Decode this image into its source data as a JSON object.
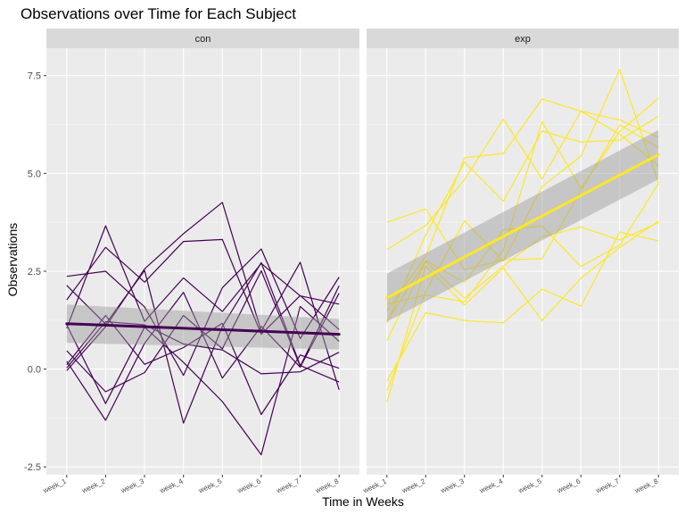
{
  "chart_data": {
    "type": "line",
    "title": "Observations over Time for Each Subject",
    "xlabel": "Time in Weeks",
    "ylabel": "Observations",
    "categories": [
      "week_1",
      "week_2",
      "week_3",
      "week_4",
      "week_5",
      "week_6",
      "week_7",
      "week_8"
    ],
    "yticks": [
      -2.5,
      0.0,
      2.5,
      5.0,
      7.5
    ],
    "ytick_labels": [
      "-2.5",
      "0.0",
      "2.5",
      "5.0",
      "7.5"
    ],
    "ylim": [
      -2.7,
      8.2
    ],
    "grid": true,
    "legend": "none",
    "panels": [
      {
        "name": "con",
        "color": "#440154",
        "smooth": {
          "y": [
            1.16,
            0.89
          ],
          "band": [
            [
              1.65,
              0.67
            ],
            [
              1.28,
              0.5
            ]
          ]
        },
        "series": [
          {
            "values": [
              0.2,
              -1.31,
              0.66,
              1.96,
              -0.23,
              1.09,
              0.05,
              1.94
            ]
          },
          {
            "values": [
              1.13,
              -0.88,
              1.07,
              0.17,
              -0.83,
              -2.19,
              1.6,
              0.71
            ]
          },
          {
            "values": [
              1.77,
              3.11,
              2.22,
              3.26,
              3.31,
              0.89,
              1.88,
              1.01
            ]
          },
          {
            "values": [
              1.04,
              3.66,
              1.22,
              2.33,
              1.47,
              2.7,
              1.87,
              1.66
            ]
          },
          {
            "values": [
              0.47,
              -0.58,
              -0.09,
              1.37,
              0.52,
              2.51,
              0.07,
              2.13
            ]
          },
          {
            "values": [
              2.37,
              2.5,
              1.59,
              -0.16,
              2.08,
              3.07,
              0.78,
              2.35
            ]
          },
          {
            "values": [
              0.03,
              1.21,
              1.13,
              0.64,
              0.49,
              -0.12,
              -0.07,
              0.43
            ]
          },
          {
            "values": [
              -0.04,
              1.08,
              2.56,
              3.46,
              4.26,
              0.97,
              2.73,
              -0.53
            ]
          },
          {
            "values": [
              2.14,
              1.15,
              2.52,
              -1.38,
              1.09,
              2.72,
              0.09,
              -0.33
            ]
          },
          {
            "values": [
              0.11,
              1.37,
              0.12,
              0.55,
              1.17,
              -1.16,
              0.36,
              0.02
            ]
          }
        ]
      },
      {
        "name": "exp",
        "color": "#fde725",
        "smooth": {
          "y": [
            1.82,
            5.48
          ],
          "band": [
            [
              2.44,
              1.21
            ],
            [
              6.11,
              4.85
            ]
          ]
        },
        "series": [
          {
            "values": [
              -0.84,
              2.63,
              1.64,
              2.58,
              1.24,
              2.32,
              3.11,
              3.78
            ]
          },
          {
            "values": [
              3.05,
              3.67,
              4.84,
              6.39,
              4.86,
              6.59,
              6.37,
              5.92
            ]
          },
          {
            "values": [
              0.73,
              2.74,
              1.82,
              2.63,
              3.38,
              3.63,
              3.3,
              3.74
            ]
          },
          {
            "values": [
              1.18,
              3.43,
              5.29,
              4.29,
              6.08,
              5.8,
              5.85,
              6.46
            ]
          },
          {
            "values": [
              -0.31,
              1.44,
              1.24,
              1.18,
              2.04,
              1.61,
              3.5,
              3.28
            ]
          },
          {
            "values": [
              -0.55,
              1.98,
              3.79,
              2.76,
              4.66,
              5.44,
              7.66,
              4.75
            ]
          },
          {
            "values": [
              1.66,
              1.89,
              1.72,
              3.04,
              6.32,
              4.62,
              6.07,
              6.92
            ]
          },
          {
            "values": [
              1.49,
              2.88,
              5.4,
              5.51,
              6.9,
              6.59,
              6.0,
              5.2
            ]
          },
          {
            "values": [
              3.75,
              4.09,
              2.54,
              2.79,
              2.82,
              4.56,
              6.24,
              5.66
            ]
          },
          {
            "values": [
              1.21,
              2.77,
              2.21,
              3.56,
              3.65,
              2.62,
              3.17,
              4.74
            ]
          }
        ]
      }
    ]
  }
}
